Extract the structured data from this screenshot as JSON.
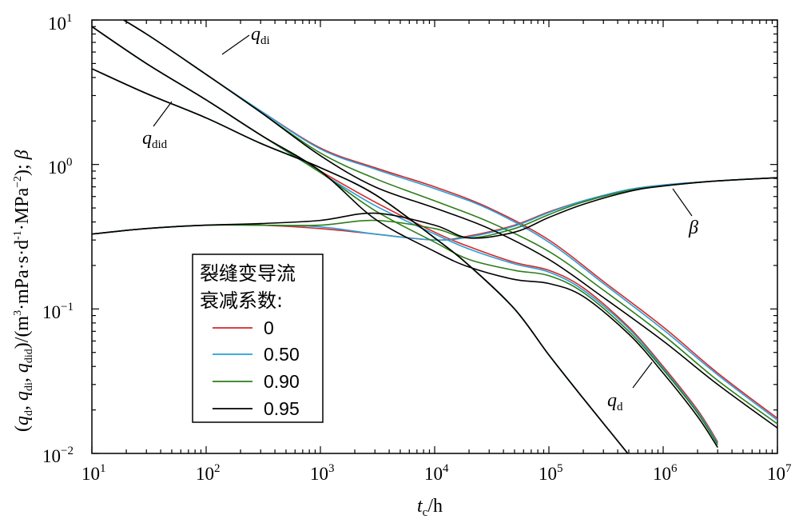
{
  "chart_data": {
    "type": "line",
    "xscale": "log",
    "yscale": "log",
    "xlim": [
      10,
      10000000
    ],
    "ylim": [
      0.01,
      10
    ],
    "x_ticks": [
      {
        "base": "10",
        "exp": "1",
        "value": 10
      },
      {
        "base": "10",
        "exp": "2",
        "value": 100
      },
      {
        "base": "10",
        "exp": "3",
        "value": 1000
      },
      {
        "base": "10",
        "exp": "4",
        "value": 10000
      },
      {
        "base": "10",
        "exp": "5",
        "value": 100000
      },
      {
        "base": "10",
        "exp": "6",
        "value": 1000000
      },
      {
        "base": "10",
        "exp": "7",
        "value": 10000000
      }
    ],
    "y_ticks": [
      {
        "base": "10",
        "exp": "1",
        "value": 10
      },
      {
        "base": "10",
        "exp": "0",
        "value": 1
      },
      {
        "base": "10",
        "exp": "−1",
        "value": 0.1
      },
      {
        "base": "10",
        "exp": "−2",
        "value": 0.01
      }
    ],
    "xlabel": {
      "var": "t",
      "sub": "c",
      "rest": "/h"
    },
    "ylabel": {
      "p1": "(",
      "q1": "q",
      "s1": "d",
      "p2": ", ",
      "q2": "q",
      "s2": "di",
      "p3": ", ",
      "q3": "q",
      "s3": "did",
      "p4": ")/(m",
      "sup1": "3",
      "p5": "·mPa·s·d",
      "sup2": "-1",
      "p6": "·MPa",
      "sup3": "−2",
      "p7": "); ",
      "beta": "β"
    },
    "legend": {
      "title_line1": "裂缝变导流",
      "title_line2": "衰减系数:",
      "position": "lower-left",
      "entries": [
        {
          "label": "0",
          "color": "#d62728"
        },
        {
          "label": "0.50",
          "color": "#2a9fd6"
        },
        {
          "label": "0.90",
          "color": "#2e7d1a"
        },
        {
          "label": "0.95",
          "color": "#000000"
        }
      ]
    },
    "annotations": [
      {
        "id": "qdi",
        "main": "q",
        "sub": "di"
      },
      {
        "id": "qdid",
        "main": "q",
        "sub": "did"
      },
      {
        "id": "beta",
        "main": "β",
        "sub": ""
      },
      {
        "id": "qd",
        "main": "q",
        "sub": "d"
      }
    ],
    "series": [
      {
        "group": "q_di",
        "legend": "0",
        "color": "#d62728",
        "x": [
          10,
          30,
          100,
          300,
          1000,
          3000,
          10000,
          30000,
          100000,
          300000,
          1000000,
          3000000,
          10000000
        ],
        "y": [
          13.5,
          8.0,
          4.2,
          2.35,
          1.3,
          0.95,
          0.7,
          0.5,
          0.3,
          0.155,
          0.075,
          0.036,
          0.0175
        ]
      },
      {
        "group": "q_di",
        "legend": "0.50",
        "color": "#2a9fd6",
        "x": [
          10,
          30,
          100,
          300,
          1000,
          3000,
          10000,
          30000,
          100000,
          300000,
          1000000,
          3000000,
          10000000
        ],
        "y": [
          13.5,
          8.0,
          4.2,
          2.35,
          1.28,
          0.93,
          0.68,
          0.49,
          0.29,
          0.15,
          0.072,
          0.035,
          0.017
        ]
      },
      {
        "group": "q_di",
        "legend": "0.90",
        "color": "#2e7d1a",
        "x": [
          10,
          30,
          100,
          300,
          1000,
          3000,
          10000,
          30000,
          100000,
          300000,
          1000000,
          3000000,
          10000000
        ],
        "y": [
          13.5,
          8.0,
          4.2,
          2.3,
          1.2,
          0.8,
          0.56,
          0.4,
          0.25,
          0.135,
          0.066,
          0.032,
          0.016
        ]
      },
      {
        "group": "q_di",
        "legend": "0.95",
        "color": "#000000",
        "x": [
          10,
          30,
          100,
          300,
          1000,
          3000,
          10000,
          30000,
          100000,
          300000,
          1000000,
          3000000,
          10000000
        ],
        "y": [
          13.5,
          8.0,
          4.2,
          2.3,
          1.15,
          0.7,
          0.5,
          0.36,
          0.22,
          0.12,
          0.06,
          0.03,
          0.015
        ]
      },
      {
        "group": "q_d",
        "legend": "0",
        "color": "#d62728",
        "x": [
          10,
          30,
          100,
          300,
          1000,
          3000,
          10000,
          20000,
          50000,
          100000,
          200000,
          500000,
          1000000,
          2000000,
          3000000
        ],
        "y": [
          9.0,
          5.0,
          2.8,
          1.6,
          0.9,
          0.55,
          0.34,
          0.27,
          0.21,
          0.185,
          0.14,
          0.075,
          0.04,
          0.02,
          0.012
        ]
      },
      {
        "group": "q_d",
        "legend": "0.50",
        "color": "#2a9fd6",
        "x": [
          10,
          30,
          100,
          300,
          1000,
          3000,
          10000,
          20000,
          50000,
          100000,
          200000,
          500000,
          1000000,
          2000000,
          3000000
        ],
        "y": [
          9.0,
          5.0,
          2.8,
          1.6,
          0.88,
          0.52,
          0.33,
          0.26,
          0.205,
          0.18,
          0.135,
          0.073,
          0.039,
          0.0195,
          0.0118
        ]
      },
      {
        "group": "q_d",
        "legend": "0.90",
        "color": "#2e7d1a",
        "x": [
          10,
          30,
          100,
          300,
          1000,
          3000,
          10000,
          20000,
          50000,
          100000,
          200000,
          500000,
          1000000,
          2000000,
          3000000
        ],
        "y": [
          9.0,
          5.0,
          2.8,
          1.6,
          0.88,
          0.48,
          0.29,
          0.22,
          0.185,
          0.17,
          0.13,
          0.07,
          0.038,
          0.019,
          0.0115
        ]
      },
      {
        "group": "q_d",
        "legend": "0.95",
        "color": "#000000",
        "x": [
          10,
          30,
          100,
          300,
          1000,
          3000,
          10000,
          20000,
          50000,
          100000,
          200000,
          500000,
          1000000,
          2000000,
          3000000
        ],
        "y": [
          9.0,
          5.0,
          2.8,
          1.6,
          0.9,
          0.42,
          0.25,
          0.195,
          0.16,
          0.15,
          0.122,
          0.067,
          0.036,
          0.018,
          0.011
        ]
      },
      {
        "group": "q_did",
        "legend": "0",
        "color": "#d62728",
        "x": [
          10,
          30,
          100,
          300,
          1000,
          3000,
          10000,
          20000,
          50000,
          100000,
          200000,
          500000,
          1000000
        ],
        "y": [
          4.6,
          3.1,
          2.1,
          1.4,
          0.95,
          0.62,
          0.31,
          0.2,
          0.1,
          0.048,
          0.024,
          0.0098,
          0.0049
        ]
      },
      {
        "group": "q_did",
        "legend": "0.50",
        "color": "#2a9fd6",
        "x": [
          10,
          30,
          100,
          300,
          1000,
          3000,
          10000,
          20000,
          50000,
          100000,
          200000,
          500000,
          1000000
        ],
        "y": [
          4.6,
          3.1,
          2.1,
          1.4,
          0.95,
          0.62,
          0.31,
          0.2,
          0.1,
          0.048,
          0.024,
          0.0098,
          0.0049
        ]
      },
      {
        "group": "q_did",
        "legend": "0.90",
        "color": "#2e7d1a",
        "x": [
          10,
          30,
          100,
          300,
          1000,
          3000,
          10000,
          20000,
          50000,
          100000,
          200000,
          500000,
          1000000
        ],
        "y": [
          4.6,
          3.1,
          2.1,
          1.4,
          0.95,
          0.62,
          0.31,
          0.2,
          0.1,
          0.048,
          0.024,
          0.0098,
          0.0049
        ]
      },
      {
        "group": "q_did",
        "legend": "0.95",
        "color": "#000000",
        "x": [
          10,
          30,
          100,
          300,
          1000,
          3000,
          10000,
          20000,
          50000,
          100000,
          200000,
          500000,
          1000000
        ],
        "y": [
          4.6,
          3.1,
          2.1,
          1.4,
          0.95,
          0.62,
          0.31,
          0.2,
          0.1,
          0.048,
          0.024,
          0.0098,
          0.0049
        ]
      },
      {
        "group": "beta",
        "legend": "0",
        "color": "#d62728",
        "x": [
          10,
          30,
          100,
          300,
          1000,
          3000,
          10000,
          20000,
          50000,
          100000,
          200000,
          500000,
          1000000,
          3000000,
          10000000
        ],
        "y": [
          0.33,
          0.36,
          0.38,
          0.38,
          0.36,
          0.33,
          0.3,
          0.32,
          0.38,
          0.47,
          0.56,
          0.67,
          0.72,
          0.77,
          0.81
        ]
      },
      {
        "group": "beta",
        "legend": "0.50",
        "color": "#2a9fd6",
        "x": [
          10,
          30,
          100,
          300,
          1000,
          3000,
          10000,
          20000,
          50000,
          100000,
          200000,
          500000,
          1000000,
          3000000,
          10000000
        ],
        "y": [
          0.33,
          0.36,
          0.38,
          0.38,
          0.37,
          0.33,
          0.3,
          0.315,
          0.375,
          0.465,
          0.56,
          0.67,
          0.72,
          0.77,
          0.81
        ]
      },
      {
        "group": "beta",
        "legend": "0.90",
        "color": "#2e7d1a",
        "x": [
          10,
          30,
          100,
          300,
          1000,
          3000,
          10000,
          20000,
          50000,
          100000,
          200000,
          500000,
          1000000,
          3000000,
          10000000
        ],
        "y": [
          0.33,
          0.36,
          0.38,
          0.38,
          0.38,
          0.41,
          0.36,
          0.31,
          0.36,
          0.45,
          0.55,
          0.66,
          0.71,
          0.77,
          0.81
        ]
      },
      {
        "group": "beta",
        "legend": "0.95",
        "color": "#000000",
        "x": [
          10,
          30,
          100,
          300,
          1000,
          3000,
          10000,
          20000,
          50000,
          100000,
          200000,
          500000,
          1000000,
          3000000,
          10000000
        ],
        "y": [
          0.33,
          0.36,
          0.38,
          0.39,
          0.41,
          0.46,
          0.38,
          0.31,
          0.34,
          0.43,
          0.53,
          0.65,
          0.71,
          0.77,
          0.81
        ]
      }
    ]
  }
}
